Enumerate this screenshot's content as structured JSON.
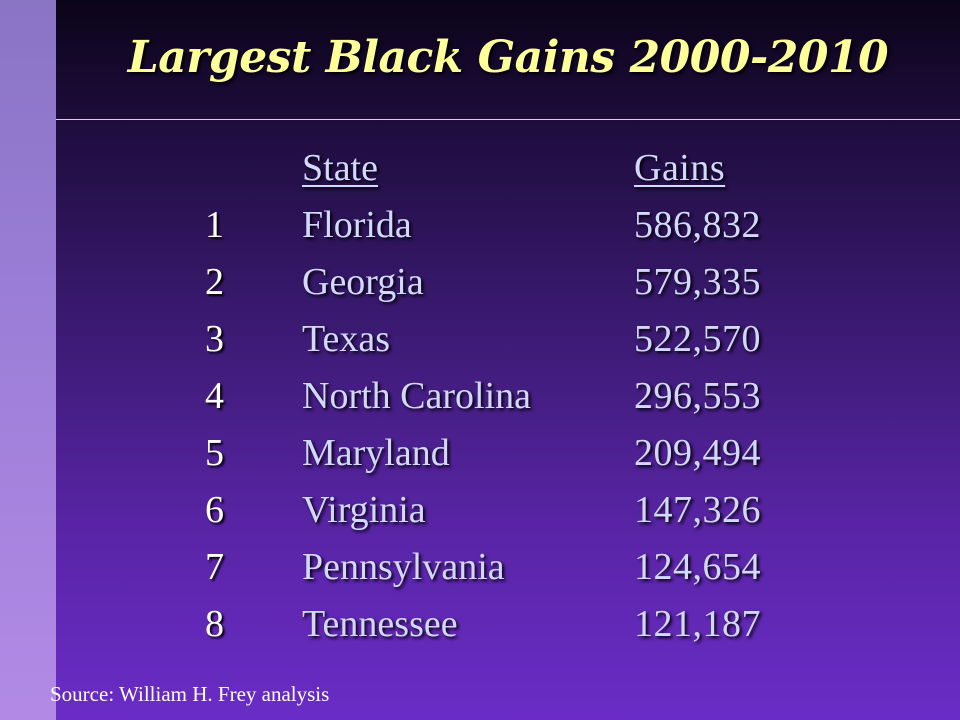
{
  "slide": {
    "title": "Largest Black Gains 2000-2010",
    "source": "Source: William H. Frey analysis"
  },
  "table": {
    "headers": {
      "state": "State",
      "gains": "Gains"
    },
    "rows": [
      {
        "rank": "1",
        "state": "Florida",
        "gains": "586,832"
      },
      {
        "rank": "2",
        "state": "Georgia",
        "gains": "579,335"
      },
      {
        "rank": "3",
        "state": "Texas",
        "gains": "522,570"
      },
      {
        "rank": "4",
        "state": "North Carolina",
        "gains": "296,553"
      },
      {
        "rank": "5",
        "state": "Maryland",
        "gains": "209,494"
      },
      {
        "rank": "6",
        "state": "Virginia",
        "gains": "147,326"
      },
      {
        "rank": "7",
        "state": "Pennsylvania",
        "gains": "124,654"
      },
      {
        "rank": "8",
        "state": "Tennessee",
        "gains": "121,187"
      }
    ]
  },
  "colors": {
    "title": "#ffff99",
    "table_text": "#d2d8ff",
    "rank_text": "#ffffff",
    "background_bottom": "#6a2cc6",
    "left_strip": "#9a7dd6"
  }
}
